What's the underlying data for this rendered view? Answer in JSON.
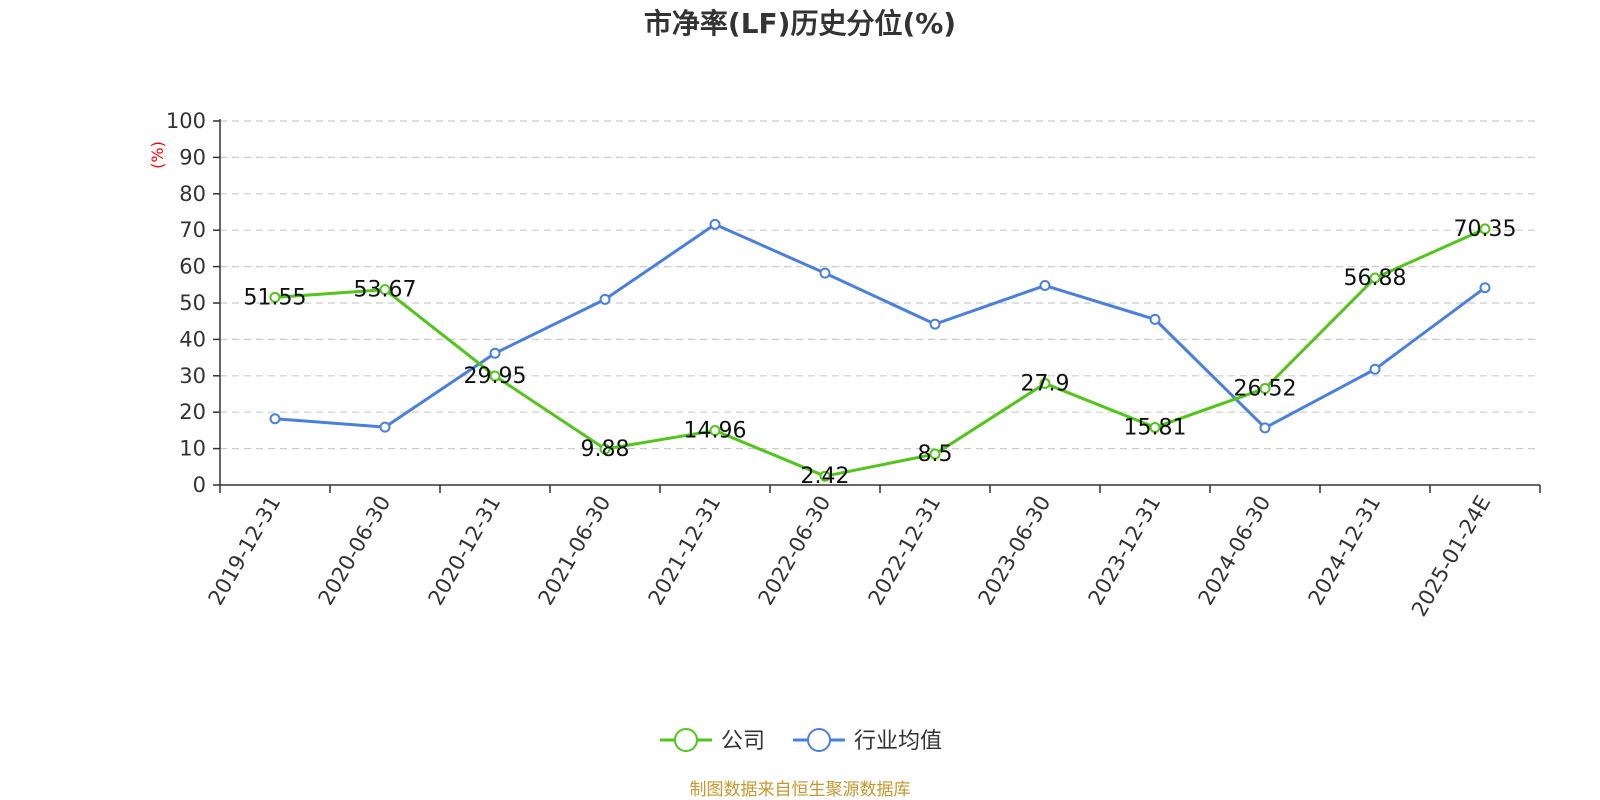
{
  "chart_data": {
    "type": "line",
    "title": "市净率(LF)历史分位(%)",
    "ylabel": "(%)",
    "ylim": [
      0,
      100
    ],
    "yticks": [
      0,
      10,
      20,
      30,
      40,
      50,
      60,
      70,
      80,
      90,
      100
    ],
    "grid": true,
    "legend_position": "bottom-center",
    "categories": [
      "2019-12-31",
      "2020-06-30",
      "2020-12-31",
      "2021-06-30",
      "2021-12-31",
      "2022-06-30",
      "2022-12-31",
      "2023-06-30",
      "2023-12-31",
      "2024-06-30",
      "2024-12-31",
      "2025-01-24E"
    ],
    "series": [
      {
        "name": "公司",
        "color": "#52c41a",
        "show_labels": true,
        "values": [
          51.55,
          53.67,
          29.95,
          9.88,
          14.96,
          2.42,
          8.5,
          27.9,
          15.81,
          26.52,
          56.88,
          70.35
        ],
        "labels": [
          "51.55",
          "53.67",
          "29.95",
          "9.88",
          "14.96",
          "2.42",
          "8.5",
          "27.9",
          "15.81",
          "26.52",
          "56.88",
          "70.35"
        ]
      },
      {
        "name": "行业均值",
        "color": "#4a7fdb",
        "show_labels": false,
        "values": [
          18.2,
          15.9,
          36.2,
          51.0,
          71.6,
          58.2,
          44.2,
          54.8,
          45.5,
          15.7,
          31.8,
          54.2
        ]
      }
    ],
    "source": "制图数据来自恒生聚源数据库",
    "colors": {
      "ylabel": "#ff0000",
      "source": "#c8962e",
      "grid": "#cccccc",
      "axis": "#333333"
    }
  }
}
